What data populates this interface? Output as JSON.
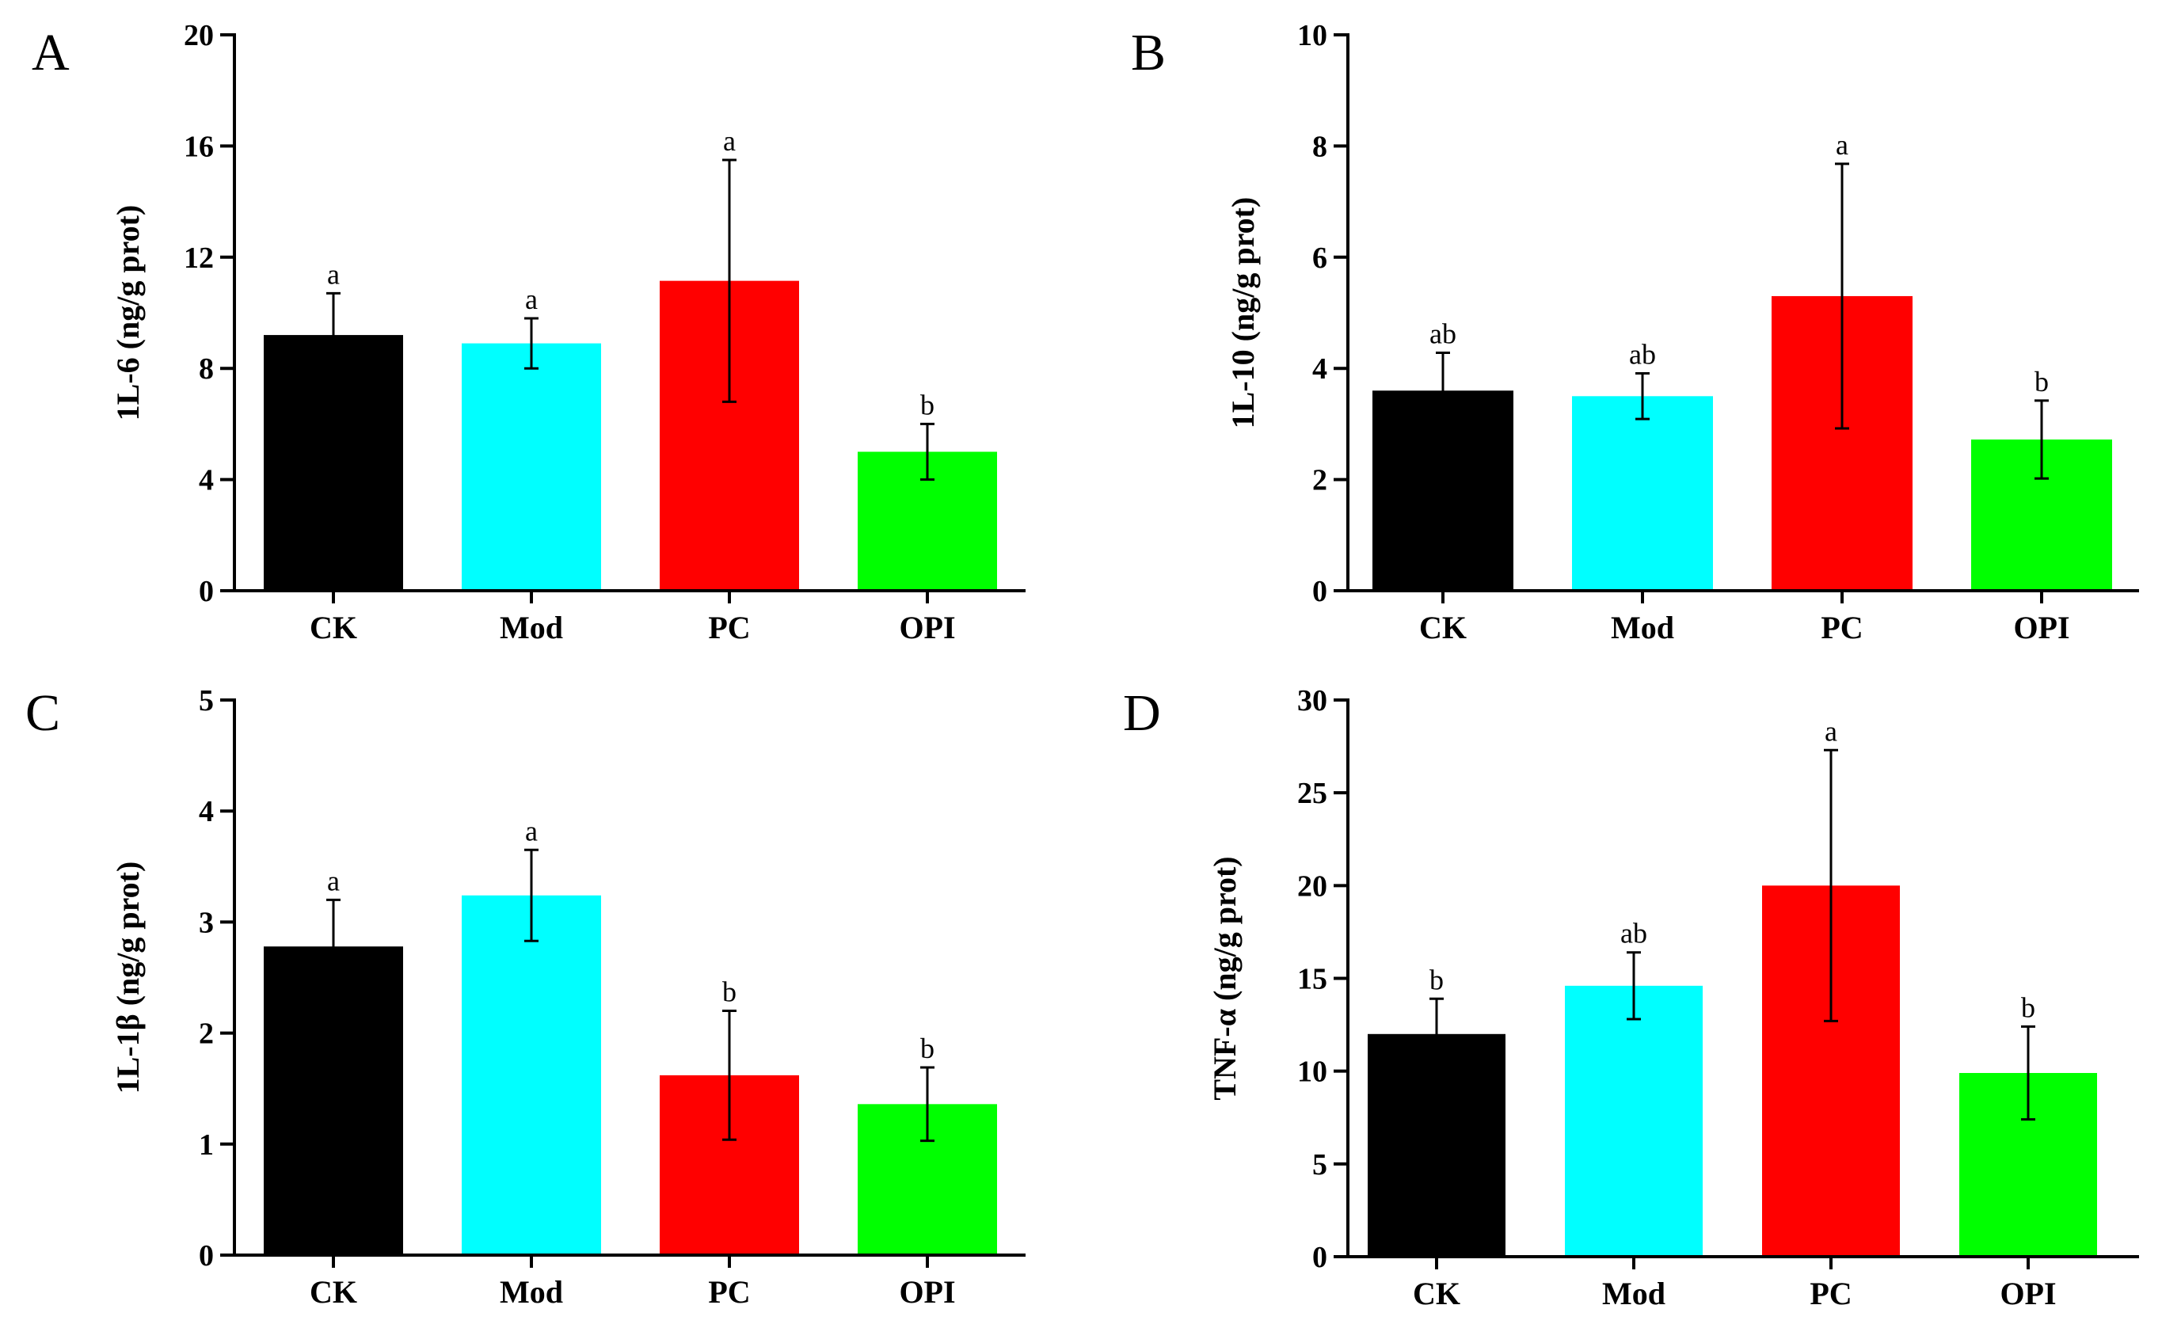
{
  "chart_data": [
    {
      "panel": "A",
      "type": "bar",
      "ylabel": "1L-6 (ng/g prot)",
      "ylim": [
        0,
        20
      ],
      "yticks": [
        0,
        4,
        8,
        12,
        16,
        20
      ],
      "grid": false,
      "categories": [
        "CK",
        "Mod",
        "PC",
        "OPI"
      ],
      "values": [
        9.2,
        8.9,
        11.15,
        5.0
      ],
      "errors": [
        1.5,
        0.9,
        4.35,
        1.0
      ],
      "significance": [
        "a",
        "a",
        "a",
        "b"
      ],
      "colors": [
        "#000000",
        "#00ffff",
        "#ff0000",
        "#00ff00"
      ]
    },
    {
      "panel": "B",
      "type": "bar",
      "ylabel": "1L-10 (ng/g prot)",
      "ylim": [
        0,
        10
      ],
      "yticks": [
        0,
        2,
        4,
        6,
        8,
        10
      ],
      "grid": false,
      "categories": [
        "CK",
        "Mod",
        "PC",
        "OPI"
      ],
      "values": [
        3.6,
        3.5,
        5.3,
        2.72
      ],
      "errors": [
        0.68,
        0.41,
        2.38,
        0.7
      ],
      "significance": [
        "ab",
        "ab",
        "a",
        "b"
      ],
      "colors": [
        "#000000",
        "#00ffff",
        "#ff0000",
        "#00ff00"
      ]
    },
    {
      "panel": "C",
      "type": "bar",
      "ylabel": "1L-1β (ng/g prot)",
      "ylim": [
        0,
        5
      ],
      "yticks": [
        0,
        1,
        2,
        3,
        4,
        5
      ],
      "grid": false,
      "categories": [
        "CK",
        "Mod",
        "PC",
        "OPI"
      ],
      "values": [
        2.78,
        3.24,
        1.62,
        1.36
      ],
      "errors": [
        0.42,
        0.41,
        0.58,
        0.33
      ],
      "significance": [
        "a",
        "a",
        "b",
        "b"
      ],
      "colors": [
        "#000000",
        "#00ffff",
        "#ff0000",
        "#00ff00"
      ]
    },
    {
      "panel": "D",
      "type": "bar",
      "ylabel": "TNF-α (ng/g prot)",
      "ylim": [
        0,
        30
      ],
      "yticks": [
        0,
        5,
        10,
        15,
        20,
        25,
        30
      ],
      "grid": false,
      "categories": [
        "CK",
        "Mod",
        "PC",
        "OPI"
      ],
      "values": [
        12.0,
        14.6,
        20.0,
        9.9
      ],
      "errors": [
        1.9,
        1.8,
        7.3,
        2.5
      ],
      "significance": [
        "b",
        "ab",
        "a",
        "b"
      ],
      "colors": [
        "#000000",
        "#00ffff",
        "#ff0000",
        "#00ff00"
      ]
    }
  ]
}
